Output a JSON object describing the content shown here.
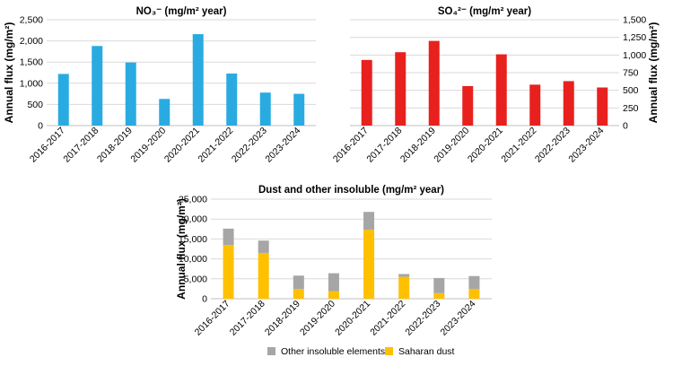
{
  "chart_data": [
    {
      "type": "bar",
      "title": "NO₃⁻ (mg/m² year)",
      "ylabel": "Annual flux (mg/m²)",
      "xlabel": "",
      "categories": [
        "2016-2017",
        "2017-2018",
        "2018-2019",
        "2019-2020",
        "2020-2021",
        "2021-2022",
        "2022-2023",
        "2023-2024"
      ],
      "series": [
        {
          "values": [
            1220,
            1880,
            1490,
            630,
            2160,
            1230,
            780,
            750
          ]
        }
      ],
      "ylim": [
        0,
        2500
      ],
      "yticks": [
        "0",
        "500",
        "1,000",
        "1,500",
        "2,000",
        "2,500"
      ],
      "y_axis_side": "left",
      "grid": true,
      "color": "#29abe2"
    },
    {
      "type": "bar",
      "title": "SO₄²⁻ (mg/m² year)",
      "ylabel": "Annual flux (mg/m²)",
      "xlabel": "",
      "categories": [
        "2016-2017",
        "2017-2018",
        "2018-2019",
        "2019-2020",
        "2020-2021",
        "2021-2022",
        "2022-2023",
        "2023-2024"
      ],
      "series": [
        {
          "values": [
            930,
            1040,
            1200,
            560,
            1010,
            580,
            630,
            540
          ]
        }
      ],
      "ylim": [
        0,
        1500
      ],
      "yticks": [
        "0",
        "250",
        "500",
        "750",
        "1,000",
        "1,250",
        "1,500"
      ],
      "y_axis_side": "right",
      "grid": true,
      "color": "#e8211e"
    },
    {
      "type": "bar",
      "stacked": true,
      "title": "Dust and other insoluble (mg/m² year)",
      "ylabel": "Annual flux (mg/m²)",
      "xlabel": "",
      "categories": [
        "2016-2017",
        "2017-2018",
        "2018-2019",
        "2019-2020",
        "2020-2021",
        "2021-2022",
        "2022-2023",
        "2023-2024"
      ],
      "series": [
        {
          "name": "Saharan dust",
          "color": "#ffc000",
          "values": [
            13500,
            11500,
            2400,
            1900,
            17300,
            5500,
            1400,
            2400
          ]
        },
        {
          "name": "Other insoluble elements",
          "color": "#a6a6a6",
          "values": [
            4100,
            3100,
            3400,
            4500,
            4500,
            700,
            3800,
            3300
          ]
        }
      ],
      "ylim": [
        0,
        25000
      ],
      "yticks": [
        "0",
        "5,000",
        "10,000",
        "15,000",
        "20,000",
        "25,000"
      ],
      "y_axis_side": "left",
      "grid": true,
      "legend": {
        "position": "bottom",
        "items": [
          {
            "label": "Other insoluble elements",
            "color": "#a6a6a6"
          },
          {
            "label": "Saharan dust",
            "color": "#ffc000"
          }
        ]
      }
    }
  ]
}
